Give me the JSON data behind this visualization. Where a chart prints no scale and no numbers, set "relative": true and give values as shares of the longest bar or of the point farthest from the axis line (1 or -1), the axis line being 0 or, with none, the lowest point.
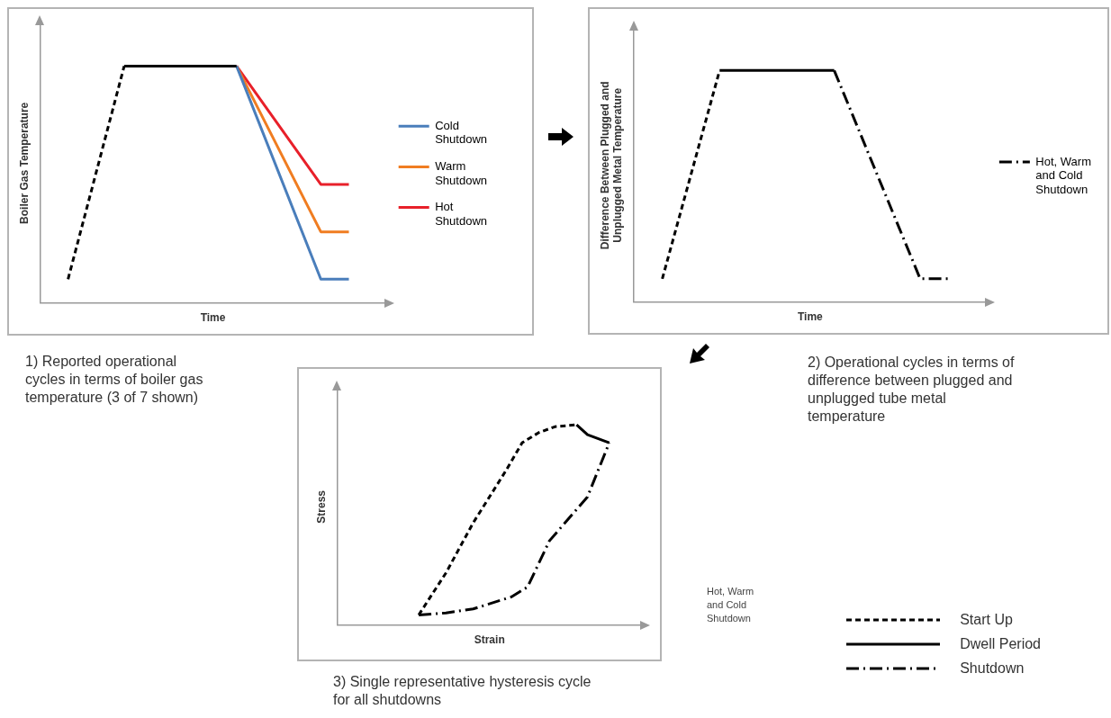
{
  "chart_data": [
    {
      "type": "line",
      "relative": true,
      "title": "1) Reported operational cycles in terms of boiler gas temperature (3 of 7 shown)",
      "xlabel": "Time",
      "ylabel": "Boiler Gas Temperature",
      "legend": "right",
      "categories": [
        null,
        null,
        null,
        null,
        null,
        null,
        null,
        null,
        null,
        null,
        null,
        null
      ],
      "series": [
        {
          "values": [
            null,
            0.1,
            null,
            1,
            null,
            null,
            null,
            null,
            null,
            null,
            null,
            null
          ],
          "color": "#000000",
          "line_style": "dashed"
        },
        {
          "values": [
            null,
            null,
            null,
            1,
            null,
            null,
            null,
            1,
            null,
            null,
            null,
            null
          ],
          "color": "#000000",
          "line_style": "solid"
        },
        {
          "name": "Cold Shutdown",
          "values": [
            null,
            null,
            null,
            null,
            null,
            null,
            null,
            1,
            null,
            null,
            0.1,
            0.1
          ],
          "color": "#4a7ebb",
          "line_style": "solid"
        },
        {
          "name": "Warm Shutdown",
          "values": [
            null,
            null,
            null,
            null,
            null,
            null,
            null,
            1,
            null,
            null,
            0.3,
            0.3
          ],
          "color": "#f07d21",
          "line_style": "solid"
        },
        {
          "name": "Hot Shutdown",
          "values": [
            null,
            null,
            null,
            null,
            null,
            null,
            null,
            1,
            null,
            null,
            0.5,
            0.5
          ],
          "color": "#e8202a",
          "line_style": "solid"
        }
      ]
    },
    {
      "type": "line",
      "relative": true,
      "title": "2) Operational cycles in terms of difference between plugged and unplugged tube metal temperature",
      "xlabel": "Time",
      "ylabel": "Difference Between Plugged and Unplugged Metal Temperature",
      "legend": "right",
      "categories": [
        null,
        null,
        null,
        null,
        null,
        null,
        null,
        null,
        null,
        null,
        null,
        null
      ],
      "series": [
        {
          "values": [
            null,
            0.1,
            null,
            1,
            null,
            null,
            null,
            null,
            null,
            null,
            null,
            null
          ],
          "color": "#000000",
          "line_style": "dashed"
        },
        {
          "values": [
            null,
            null,
            null,
            1,
            null,
            null,
            null,
            1,
            null,
            null,
            null,
            null
          ],
          "color": "#000000",
          "line_style": "solid"
        },
        {
          "name": "Hot, Warm and Cold Shutdown",
          "values": [
            null,
            null,
            null,
            null,
            null,
            null,
            null,
            1,
            null,
            null,
            0.1,
            0.1
          ],
          "color": "#000000",
          "line_style": "dashdot"
        }
      ]
    },
    {
      "type": "line",
      "relative": true,
      "title": "3) Single representative hysteresis cycle for all shutdowns",
      "xlabel": "Strain",
      "ylabel": "Stress",
      "legend": "bottom right",
      "annotations": [
        "Hot, Warm and Cold Shutdown"
      ],
      "categories": [
        null,
        null,
        null,
        null,
        null,
        null,
        null,
        null,
        null,
        null,
        null,
        null,
        null,
        null,
        null,
        null,
        null,
        null,
        null,
        null,
        null,
        null,
        null,
        null,
        null,
        null,
        null,
        null,
        null,
        null,
        null,
        null,
        null,
        null,
        null,
        null,
        null,
        null,
        null,
        null,
        null,
        null,
        null,
        null,
        null,
        null,
        null,
        null,
        null,
        null,
        null
      ],
      "series": [
        {
          "name": "Start Up",
          "values": [
            null,
            null,
            null,
            null,
            null,
            null,
            null,
            null,
            null,
            null,
            null,
            null,
            null,
            null,
            null,
            0.05,
            null,
            null,
            null,
            null,
            0.26,
            null,
            null,
            null,
            null,
            0.51,
            null,
            null,
            null,
            null,
            null,
            0.77,
            null,
            null,
            0.91,
            null,
            null,
            0.96,
            null,
            null,
            0.99,
            null,
            null,
            null,
            1,
            null,
            null,
            null,
            null,
            null,
            null
          ],
          "color": "#000000",
          "line_style": "dashed"
        },
        {
          "name": "Dwell Period",
          "values": [
            null,
            null,
            null,
            null,
            null,
            null,
            null,
            null,
            null,
            null,
            null,
            null,
            null,
            null,
            null,
            null,
            null,
            null,
            null,
            null,
            null,
            null,
            null,
            null,
            null,
            null,
            null,
            null,
            null,
            null,
            null,
            null,
            null,
            null,
            null,
            null,
            null,
            null,
            null,
            null,
            null,
            null,
            null,
            null,
            1,
            null,
            0.95,
            null,
            null,
            null,
            0.91
          ],
          "color": "#000000",
          "line_style": "solid"
        },
        {
          "name": "Shutdown",
          "values": [
            null,
            null,
            null,
            null,
            null,
            null,
            null,
            null,
            null,
            null,
            null,
            null,
            null,
            null,
            null,
            0.05,
            null,
            null,
            null,
            null,
            0.06,
            null,
            null,
            null,
            null,
            0.08,
            null,
            null,
            null,
            null,
            null,
            null,
            0.14,
            null,
            null,
            0.19,
            null,
            null,
            null,
            0.42,
            null,
            null,
            null,
            null,
            null,
            null,
            0.64,
            null,
            null,
            null,
            0.91
          ],
          "color": "#000000",
          "line_style": "dashdot"
        }
      ]
    }
  ]
}
